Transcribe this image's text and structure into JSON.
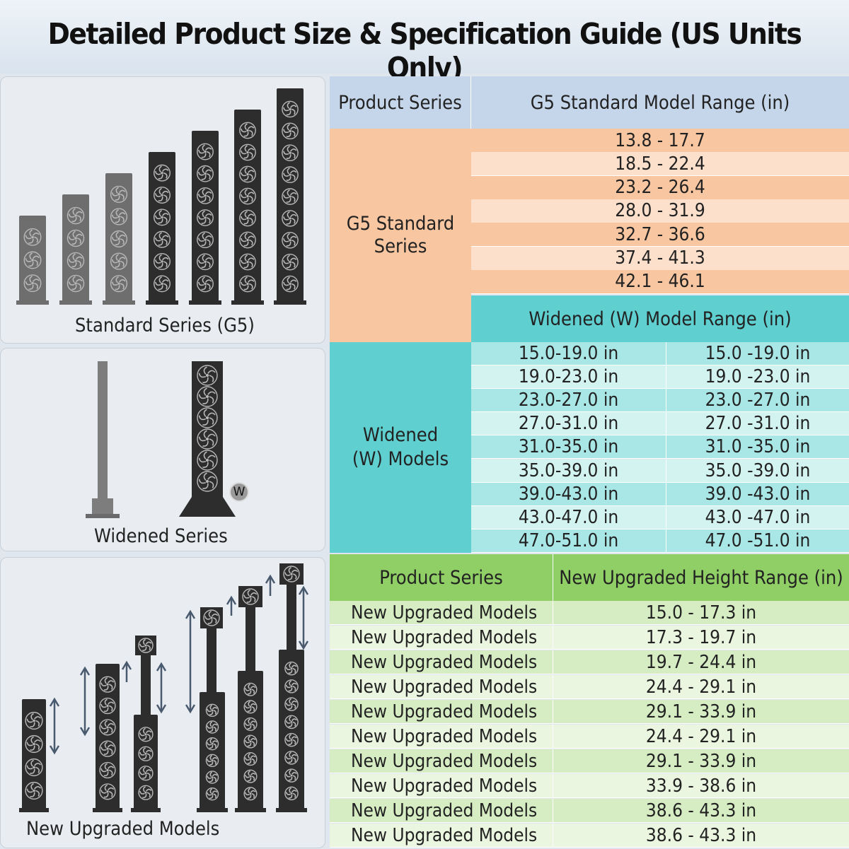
{
  "title": "Detailed Product Size & Specification Guide (US Units Only)",
  "panels": {
    "standard_caption": "Standard Series (G5)",
    "widened_caption": "Widened Series",
    "widened_badge": "W",
    "upgraded_caption": "New Upgraded Models"
  },
  "g5_table": {
    "col1_header": "Product Series",
    "col2_header": "G5 Standard Model Range (in)",
    "series_label_line1": "G5 Standard",
    "series_label_line2": "Series",
    "ranges": [
      "13.8 - 17.7",
      "18.5 - 22.4",
      "23.2 - 26.4",
      "28.0 - 31.9",
      "32.7 - 36.6",
      "37.4 - 41.3",
      "42.1 - 46.1"
    ]
  },
  "widened_table": {
    "header": "Widened (W) Model Range (in)",
    "series_label_line1": "Widened",
    "series_label_line2": "(W) Models",
    "ranges_a": [
      "15.0-19.0 in",
      "19.0-23.0 in",
      "23.0-27.0 in",
      "27.0-31.0 in",
      "31.0-35.0 in",
      "35.0-39.0 in",
      "39.0-43.0 in",
      "43.0-47.0 in",
      "47.0-51.0 in"
    ],
    "ranges_b": [
      "15.0 -19.0 in",
      "19.0 -23.0 in",
      "23.0 -27.0 in",
      "27.0 -31.0 in",
      "31.0 -35.0 in",
      "35.0 -39.0 in",
      "39.0 -43.0 in",
      "43.0 -47.0 in",
      "47.0 -51.0 in"
    ]
  },
  "upgraded_table": {
    "col1_header": "Product Series",
    "col2_header": "New Upgraded Height Range (in)",
    "rows": [
      {
        "series": "New Upgraded Models",
        "range": "15.0 - 17.3 in"
      },
      {
        "series": "New Upgraded Models",
        "range": "17.3 - 19.7 in"
      },
      {
        "series": "New Upgraded Models",
        "range": "19.7 - 24.4 in"
      },
      {
        "series": "New Upgraded Models",
        "range": "24.4 - 29.1 in"
      },
      {
        "series": "New Upgraded Models",
        "range": "29.1 - 33.9 in"
      },
      {
        "series": "New Upgraded Models",
        "range": "24.4 - 29.1 in"
      },
      {
        "series": "New Upgraded Models",
        "range": "29.1 - 33.9 in"
      },
      {
        "series": "New Upgraded Models",
        "range": "33.9 - 38.6 in"
      },
      {
        "series": "New Upgraded Models",
        "range": "38.6 - 43.3 in"
      },
      {
        "series": "New Upgraded Models",
        "range": "38.6 - 43.3 in"
      }
    ]
  },
  "colors": {
    "orange": "#f8c6a0",
    "orange_light": "#fce0cb",
    "teal_dark": "#5fcfcf",
    "teal": "#a9e6e6",
    "teal_light": "#d3f3f1",
    "green_dark": "#8fcf66",
    "green": "#d6edc4",
    "green_light": "#eaf6df",
    "header_blue": "#c5d6ea"
  }
}
